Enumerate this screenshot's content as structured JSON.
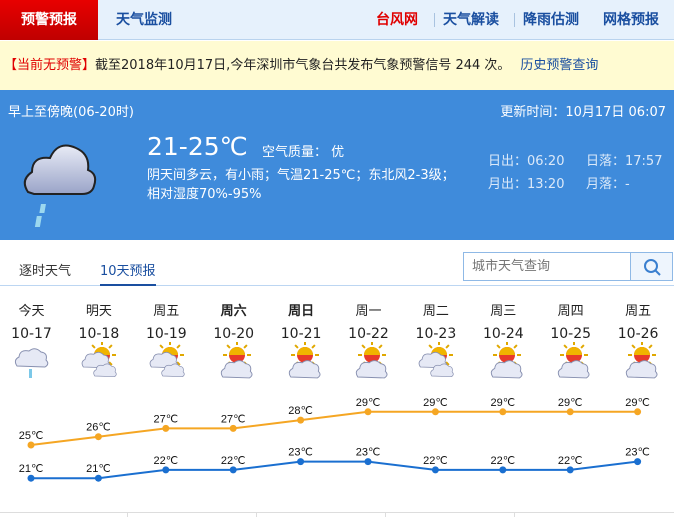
{
  "nav": {
    "active": "预警预报",
    "monitor": "天气监测",
    "right": [
      "台风网",
      "天气解读",
      "降雨估测",
      "网格预报"
    ]
  },
  "warning": {
    "status": "【当前无预警】",
    "text": "截至2018年10月17日,今年深圳市气象台共发布气象预警信号 244 次。",
    "link": "历史预警查询"
  },
  "today": {
    "period": "早上至傍晚(06-20时)",
    "updated": "更新时间：10月17日 06:07",
    "temp": "21-25℃",
    "aqi": "空气质量： 优",
    "desc": "阴天间多云，有小雨；气温21-25℃；东北风2-3级；",
    "humidity": "相对湿度70%-95%",
    "sunrise": "日出：06:20",
    "sunset": "日落：17:57",
    "moonrise": "月出：13:20",
    "moonset": "月落：-",
    "icon": "rain-cloud-icon"
  },
  "tabs": [
    "逐时天气",
    "10天预报"
  ],
  "search": {
    "placeholder": "城市天气查询"
  },
  "forecast": [
    {
      "week": "今天",
      "date": "10-17",
      "icon": "rain",
      "bold": false
    },
    {
      "week": "明天",
      "date": "10-18",
      "icon": "partly-cloudy",
      "bold": false
    },
    {
      "week": "周五",
      "date": "10-19",
      "icon": "partly-cloudy",
      "bold": false
    },
    {
      "week": "周六",
      "date": "10-20",
      "icon": "sun-cloud",
      "bold": true
    },
    {
      "week": "周日",
      "date": "10-21",
      "icon": "sun-cloud",
      "bold": true
    },
    {
      "week": "周一",
      "date": "10-22",
      "icon": "sun-cloud",
      "bold": false
    },
    {
      "week": "周二",
      "date": "10-23",
      "icon": "partly-cloudy",
      "bold": false
    },
    {
      "week": "周三",
      "date": "10-24",
      "icon": "sun-cloud",
      "bold": false
    },
    {
      "week": "周四",
      "date": "10-25",
      "icon": "sun-cloud",
      "bold": false
    },
    {
      "week": "周五",
      "date": "10-26",
      "icon": "sun-cloud",
      "bold": false
    }
  ],
  "chart_data": {
    "type": "line",
    "categories": [
      "10-17",
      "10-18",
      "10-19",
      "10-20",
      "10-21",
      "10-22",
      "10-23",
      "10-24",
      "10-25",
      "10-26"
    ],
    "unit": "℃",
    "series": [
      {
        "values": [
          25,
          26,
          27,
          27,
          28,
          29,
          29,
          29,
          29,
          29
        ],
        "color": "#f5a623"
      },
      {
        "values": [
          21,
          21,
          22,
          22,
          23,
          23,
          22,
          22,
          22,
          23
        ],
        "color": "#1a6fd0"
      }
    ]
  }
}
